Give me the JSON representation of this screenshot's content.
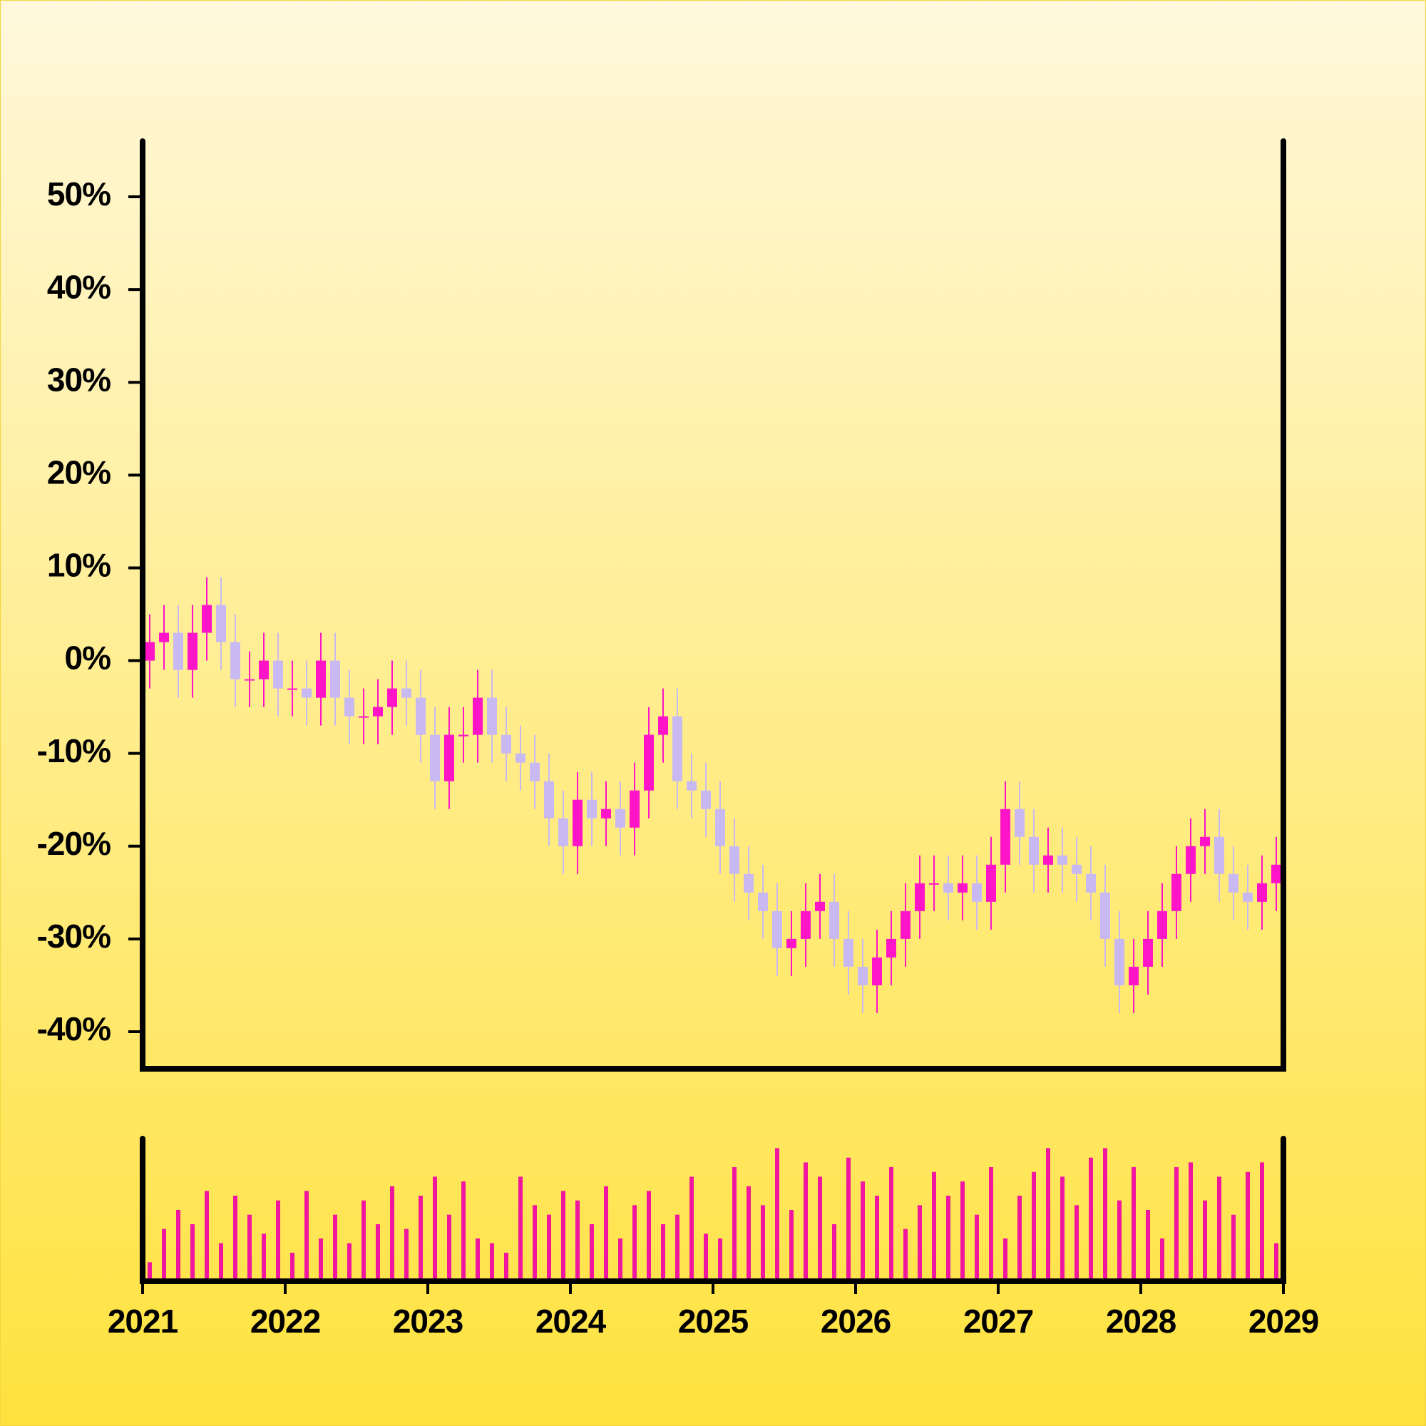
{
  "chart_data": [
    {
      "type": "candlestick",
      "x": [
        2021.05,
        2021.15,
        2021.25,
        2021.35,
        2021.45,
        2021.55,
        2021.65,
        2021.75,
        2021.85,
        2021.95,
        2022.05,
        2022.15,
        2022.25,
        2022.35,
        2022.45,
        2022.55,
        2022.65,
        2022.75,
        2022.85,
        2022.95,
        2023.05,
        2023.15,
        2023.25,
        2023.35,
        2023.45,
        2023.55,
        2023.65,
        2023.75,
        2023.85,
        2023.95,
        2024.05,
        2024.15,
        2024.25,
        2024.35,
        2024.45,
        2024.55,
        2024.65,
        2024.75,
        2024.85,
        2024.95,
        2025.05,
        2025.15,
        2025.25,
        2025.35,
        2025.45,
        2025.55,
        2025.65,
        2025.75,
        2025.85,
        2025.95,
        2026.05,
        2026.15,
        2026.25,
        2026.35,
        2026.45,
        2026.55,
        2026.65,
        2026.75,
        2026.85,
        2026.95,
        2027.05,
        2027.15,
        2027.25,
        2027.35,
        2027.45,
        2027.55,
        2027.65,
        2027.75,
        2027.85,
        2027.95,
        2028.05,
        2028.15,
        2028.25,
        2028.35,
        2028.45,
        2028.55,
        2028.65,
        2028.75,
        2028.85,
        2028.95
      ],
      "open": [
        0,
        2,
        3,
        -1,
        3,
        6,
        2,
        -2,
        -2,
        0,
        -3,
        -3,
        -4,
        0,
        -4,
        -6,
        -6,
        -5,
        -3,
        -4,
        -8,
        -13,
        -8,
        -8,
        -4,
        -8,
        -10,
        -11,
        -13,
        -17,
        -20,
        -15,
        -17,
        -16,
        -18,
        -14,
        -8,
        -6,
        -13,
        -14,
        -16,
        -20,
        -23,
        -25,
        -27,
        -31,
        -30,
        -27,
        -26,
        -30,
        -33,
        -35,
        -32,
        -30,
        -27,
        -24,
        -24,
        -25,
        -24,
        -26,
        -22,
        -16,
        -19,
        -22,
        -21,
        -22,
        -23,
        -25,
        -30,
        -35,
        -33,
        -30,
        -27,
        -23,
        -20,
        -19,
        -23,
        -25,
        -26,
        -24
      ],
      "high": [
        5,
        6,
        6,
        6,
        9,
        9,
        5,
        1,
        3,
        3,
        0,
        0,
        3,
        3,
        -1,
        -3,
        -2,
        0,
        0,
        -1,
        -5,
        -5,
        -5,
        -1,
        -1,
        -5,
        -7,
        -8,
        -10,
        -14,
        -12,
        -12,
        -13,
        -13,
        -11,
        -5,
        -3,
        -3,
        -10,
        -11,
        -13,
        -17,
        -20,
        -22,
        -24,
        -27,
        -24,
        -23,
        -23,
        -27,
        -30,
        -29,
        -27,
        -24,
        -21,
        -21,
        -21,
        -21,
        -21,
        -19,
        -13,
        -13,
        -16,
        -18,
        -18,
        -19,
        -20,
        -22,
        -27,
        -30,
        -27,
        -24,
        -20,
        -17,
        -16,
        -16,
        -20,
        -22,
        -21,
        -19
      ],
      "low": [
        -3,
        -1,
        -4,
        -4,
        0,
        -1,
        -5,
        -5,
        -5,
        -6,
        -6,
        -7,
        -7,
        -7,
        -9,
        -9,
        -9,
        -8,
        -7,
        -11,
        -16,
        -16,
        -11,
        -11,
        -11,
        -13,
        -14,
        -16,
        -20,
        -23,
        -23,
        -20,
        -20,
        -21,
        -21,
        -17,
        -11,
        -16,
        -17,
        -19,
        -23,
        -26,
        -28,
        -30,
        -34,
        -34,
        -33,
        -30,
        -33,
        -36,
        -38,
        -38,
        -35,
        -33,
        -30,
        -27,
        -28,
        -28,
        -29,
        -29,
        -25,
        -22,
        -25,
        -25,
        -25,
        -26,
        -28,
        -33,
        -38,
        -38,
        -36,
        -33,
        -30,
        -26,
        -23,
        -26,
        -28,
        -29,
        -29,
        -27
      ],
      "close": [
        2,
        3,
        -1,
        3,
        6,
        2,
        -2,
        -2,
        0,
        -3,
        -3,
        -4,
        0,
        -4,
        -6,
        -6,
        -5,
        -3,
        -4,
        -8,
        -13,
        -8,
        -8,
        -4,
        -8,
        -10,
        -11,
        -13,
        -17,
        -20,
        -15,
        -17,
        -16,
        -18,
        -14,
        -8,
        -6,
        -13,
        -14,
        -16,
        -20,
        -23,
        -25,
        -27,
        -31,
        -30,
        -27,
        -26,
        -30,
        -33,
        -35,
        -32,
        -30,
        -27,
        -24,
        -24,
        -25,
        -24,
        -26,
        -22,
        -16,
        -19,
        -22,
        -21,
        -22,
        -23,
        -25,
        -30,
        -35,
        -33,
        -30,
        -27,
        -23,
        -20,
        -19,
        -23,
        -25,
        -26,
        -24,
        -22
      ],
      "up_color": "#ff14c8",
      "down_color": "#c8b9f2",
      "xlim": [
        2021,
        2029
      ],
      "ylim": [
        -44,
        56
      ],
      "yticks": [
        {
          "value": -40,
          "label": "-40%"
        },
        {
          "value": -30,
          "label": "-30%"
        },
        {
          "value": -20,
          "label": "-20%"
        },
        {
          "value": -10,
          "label": "-10%"
        },
        {
          "value": 0,
          "label": "0%"
        },
        {
          "value": 10,
          "label": "10%"
        },
        {
          "value": 20,
          "label": "20%"
        },
        {
          "value": 30,
          "label": "30%"
        },
        {
          "value": 40,
          "label": "40%"
        },
        {
          "value": 50,
          "label": "50%"
        }
      ]
    },
    {
      "type": "bar",
      "x": [
        2021.05,
        2021.15,
        2021.25,
        2021.35,
        2021.45,
        2021.55,
        2021.65,
        2021.75,
        2021.85,
        2021.95,
        2022.05,
        2022.15,
        2022.25,
        2022.35,
        2022.45,
        2022.55,
        2022.65,
        2022.75,
        2022.85,
        2022.95,
        2023.05,
        2023.15,
        2023.25,
        2023.35,
        2023.45,
        2023.55,
        2023.65,
        2023.75,
        2023.85,
        2023.95,
        2024.05,
        2024.15,
        2024.25,
        2024.35,
        2024.45,
        2024.55,
        2024.65,
        2024.75,
        2024.85,
        2024.95,
        2025.05,
        2025.15,
        2025.25,
        2025.35,
        2025.45,
        2025.55,
        2025.65,
        2025.75,
        2025.85,
        2025.95,
        2026.05,
        2026.15,
        2026.25,
        2026.35,
        2026.45,
        2026.55,
        2026.65,
        2026.75,
        2026.85,
        2026.95,
        2027.05,
        2027.15,
        2027.25,
        2027.35,
        2027.45,
        2027.55,
        2027.65,
        2027.75,
        2027.85,
        2027.95,
        2028.05,
        2028.15,
        2028.25,
        2028.35,
        2028.45,
        2028.55,
        2028.65,
        2028.75,
        2028.85,
        2028.95
      ],
      "values": [
        20,
        55,
        75,
        60,
        95,
        40,
        90,
        70,
        50,
        85,
        30,
        95,
        45,
        70,
        40,
        85,
        60,
        100,
        55,
        90,
        110,
        70,
        105,
        45,
        40,
        30,
        110,
        80,
        70,
        95,
        85,
        60,
        100,
        45,
        80,
        95,
        60,
        70,
        110,
        50,
        45,
        120,
        100,
        80,
        140,
        75,
        125,
        110,
        60,
        130,
        105,
        90,
        120,
        55,
        80,
        115,
        90,
        105,
        70,
        120,
        45,
        90,
        115,
        140,
        110,
        80,
        130,
        140,
        85,
        120,
        75,
        45,
        120,
        125,
        85,
        110,
        70,
        115,
        125,
        40
      ],
      "color": "#f0169f",
      "xlim": [
        2021,
        2029
      ],
      "ylim": [
        0,
        150
      ],
      "xticks": [
        2021,
        2022,
        2023,
        2024,
        2025,
        2026,
        2027,
        2028,
        2029
      ]
    }
  ]
}
